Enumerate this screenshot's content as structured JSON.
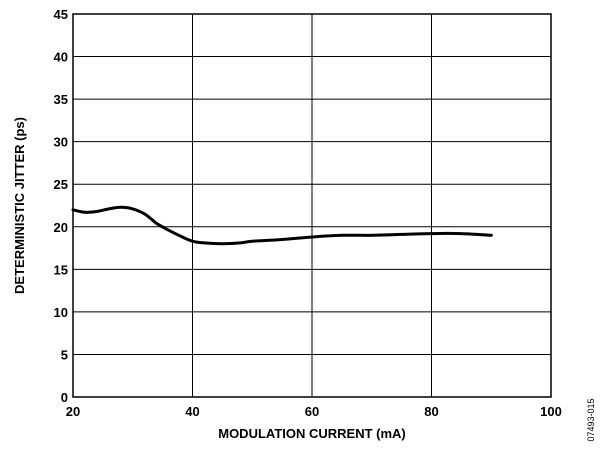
{
  "chart_data": {
    "type": "line",
    "title": "",
    "xlabel": "MODULATION CURRENT (mA)",
    "ylabel": "DETERMINISTIC JITTER (ps)",
    "xlim": [
      20,
      100
    ],
    "ylim": [
      0,
      45
    ],
    "xticks": [
      20,
      40,
      60,
      80,
      100
    ],
    "yticks": [
      0,
      5,
      10,
      15,
      20,
      25,
      30,
      35,
      40,
      45
    ],
    "grid": true,
    "legend": "none",
    "line_color": "#000000",
    "series": [
      {
        "x": [
          20,
          22,
          24,
          26,
          28,
          30,
          32,
          34,
          36,
          38,
          40,
          42,
          45,
          48,
          50,
          55,
          60,
          65,
          70,
          75,
          80,
          85,
          90
        ],
        "y": [
          22.0,
          21.7,
          21.8,
          22.1,
          22.3,
          22.1,
          21.5,
          20.4,
          19.6,
          18.9,
          18.3,
          18.1,
          18.0,
          18.1,
          18.3,
          18.5,
          18.8,
          19.0,
          19.0,
          19.1,
          19.2,
          19.2,
          19.0
        ]
      }
    ]
  },
  "figure_id": "07493-015"
}
